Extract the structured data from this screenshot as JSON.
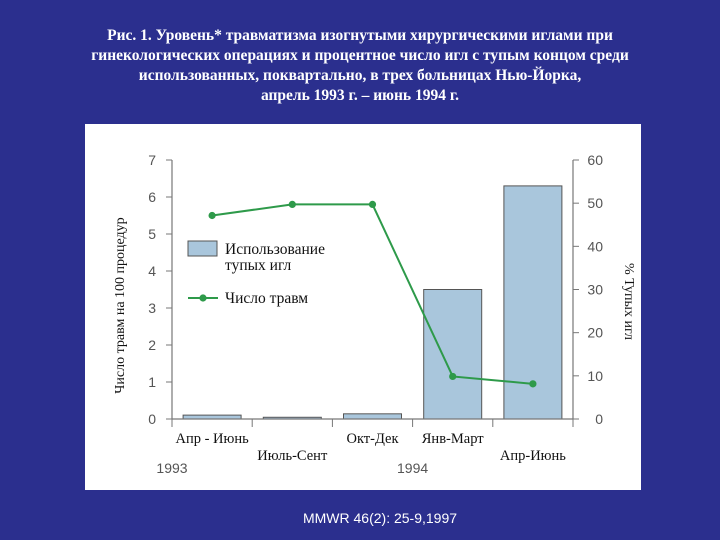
{
  "slide": {
    "title_lines": [
      "Рис. 1. Уровень* травматизма изогнутыми хирургическими иглами при",
      "гинекологических операциях и процентное число игл с тупым концом среди",
      "использованных, поквартально, в трех больницах Нью-Йорка,",
      "апрель 1993 г. – июнь 1994 г."
    ],
    "citation": "MMWR 46(2): 25-9,1997",
    "background": "#2b2f8e"
  },
  "chart_data": {
    "type": "bar+line",
    "categories": [
      "Апр - Июнь",
      "Июль-Сент",
      "Окт-Дек",
      "Янв-Март",
      "Апр-Июнь"
    ],
    "years": [
      {
        "label": "1993",
        "at_category": 0
      },
      {
        "label": "1994",
        "at_category": 3
      }
    ],
    "bars": {
      "name": "Использование тупых игл",
      "axis": "right",
      "values": [
        0.9,
        0.4,
        1.2,
        30,
        54
      ],
      "color": "#a9c6dc",
      "stroke": "#555555"
    },
    "line": {
      "name": "Число травм",
      "axis": "left",
      "values": [
        5.5,
        5.8,
        5.8,
        1.15,
        0.95
      ],
      "color": "#2e9a4a"
    },
    "y_left": {
      "label": "Число травм на 100 процедур",
      "min": 0,
      "max": 7,
      "ticks": [
        0,
        1,
        2,
        3,
        4,
        5,
        6,
        7
      ]
    },
    "y_right": {
      "label": "% Тупых игл",
      "min": 0,
      "max": 60,
      "ticks": [
        0,
        10,
        20,
        30,
        40,
        50,
        60
      ]
    },
    "legend_position": "upper-left",
    "grid": false
  }
}
